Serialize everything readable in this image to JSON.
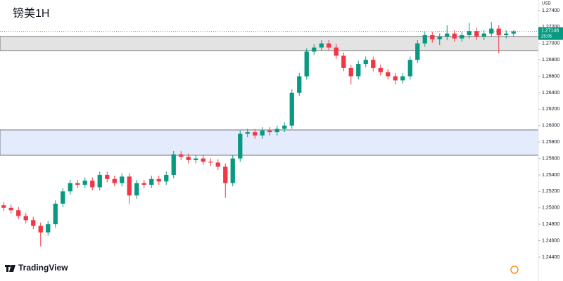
{
  "chart_data": {
    "type": "candlestick",
    "title": "镑美1H",
    "currency": "USD",
    "brand": "TradingView",
    "up_color": "#089981",
    "down_color": "#f23645",
    "ylim": [
      1.24109,
      1.27528
    ],
    "yticks": [
      {
        "value": 1.244,
        "label": "1.24400"
      },
      {
        "value": 1.246,
        "label": "1.24600"
      },
      {
        "value": 1.248,
        "label": "1.24800"
      },
      {
        "value": 1.25,
        "label": "1.25000"
      },
      {
        "value": 1.252,
        "label": "1.25200"
      },
      {
        "value": 1.254,
        "label": "1.25400"
      },
      {
        "value": 1.256,
        "label": "1.25600"
      },
      {
        "value": 1.258,
        "label": "1.25800"
      },
      {
        "value": 1.26,
        "label": "1.26000"
      },
      {
        "value": 1.262,
        "label": "1.26200"
      },
      {
        "value": 1.264,
        "label": "1.26400"
      },
      {
        "value": 1.266,
        "label": "1.26600"
      },
      {
        "value": 1.268,
        "label": "1.26800"
      },
      {
        "value": 1.27,
        "label": "1.27000"
      },
      {
        "value": 1.272,
        "label": "1.27200"
      },
      {
        "value": 1.274,
        "label": "1.27400"
      }
    ],
    "zones": [
      {
        "from": 1.26913,
        "to": 1.27084,
        "color": "#e3e3e3"
      },
      {
        "from": 1.25639,
        "to": 1.25947,
        "color": "#e3ebfd"
      }
    ],
    "last_price": {
      "value": 1.27146,
      "label": "1.27146",
      "countdown": "25:05"
    },
    "ohlc": [
      [
        1.2503,
        1.2507,
        1.2496,
        1.25
      ],
      [
        1.25,
        1.2504,
        1.2493,
        1.2497
      ],
      [
        1.2497,
        1.2501,
        1.2486,
        1.249
      ],
      [
        1.249,
        1.2494,
        1.2481,
        1.2485
      ],
      [
        1.2485,
        1.2489,
        1.2474,
        1.2478
      ],
      [
        1.2478,
        1.2482,
        1.2453,
        1.247
      ],
      [
        1.247,
        1.2484,
        1.2466,
        1.248
      ],
      [
        1.248,
        1.2509,
        1.2476,
        1.2505
      ],
      [
        1.2505,
        1.2524,
        1.2501,
        1.252
      ],
      [
        1.252,
        1.2534,
        1.2516,
        1.253
      ],
      [
        1.253,
        1.2534,
        1.2524,
        1.2528
      ],
      [
        1.2528,
        1.2537,
        1.2524,
        1.2533
      ],
      [
        1.2533,
        1.2537,
        1.2521,
        1.2525
      ],
      [
        1.2525,
        1.2544,
        1.2521,
        1.254
      ],
      [
        1.254,
        1.2544,
        1.2531,
        1.2535
      ],
      [
        1.2535,
        1.2539,
        1.2526,
        1.253
      ],
      [
        1.253,
        1.2542,
        1.2526,
        1.2538
      ],
      [
        1.2538,
        1.2542,
        1.2505,
        1.2515
      ],
      [
        1.2515,
        1.2534,
        1.2511,
        1.253
      ],
      [
        1.253,
        1.2534,
        1.2524,
        1.2528
      ],
      [
        1.2528,
        1.2539,
        1.2524,
        1.2535
      ],
      [
        1.2535,
        1.2539,
        1.2528,
        1.2532
      ],
      [
        1.2532,
        1.2544,
        1.2528,
        1.254
      ],
      [
        1.254,
        1.2569,
        1.2536,
        1.2565
      ],
      [
        1.2565,
        1.2569,
        1.2558,
        1.2562
      ],
      [
        1.2562,
        1.2566,
        1.2554,
        1.2558
      ],
      [
        1.2558,
        1.2564,
        1.2554,
        1.256
      ],
      [
        1.256,
        1.2564,
        1.2552,
        1.2556
      ],
      [
        1.2556,
        1.256,
        1.2551,
        1.2555
      ],
      [
        1.2555,
        1.2559,
        1.2546,
        1.255
      ],
      [
        1.255,
        1.2554,
        1.2512,
        1.253
      ],
      [
        1.253,
        1.2564,
        1.2526,
        1.256
      ],
      [
        1.256,
        1.2594,
        1.2556,
        1.259
      ],
      [
        1.259,
        1.2596,
        1.2586,
        1.2592
      ],
      [
        1.2592,
        1.2596,
        1.2584,
        1.2588
      ],
      [
        1.2588,
        1.2598,
        1.2584,
        1.2594
      ],
      [
        1.2594,
        1.2598,
        1.2588,
        1.2592
      ],
      [
        1.2592,
        1.26,
        1.2588,
        1.2596
      ],
      [
        1.2596,
        1.2604,
        1.2592,
        1.26
      ],
      [
        1.26,
        1.2644,
        1.2596,
        1.264
      ],
      [
        1.264,
        1.2664,
        1.2636,
        1.266
      ],
      [
        1.266,
        1.2694,
        1.2656,
        1.269
      ],
      [
        1.269,
        1.2699,
        1.2686,
        1.2695
      ],
      [
        1.2695,
        1.2704,
        1.2691,
        1.27
      ],
      [
        1.27,
        1.2704,
        1.2691,
        1.2695
      ],
      [
        1.2695,
        1.2699,
        1.2681,
        1.2685
      ],
      [
        1.2685,
        1.2689,
        1.2666,
        1.267
      ],
      [
        1.267,
        1.2674,
        1.265,
        1.266
      ],
      [
        1.266,
        1.2679,
        1.2656,
        1.2675
      ],
      [
        1.2675,
        1.2684,
        1.2671,
        1.268
      ],
      [
        1.268,
        1.2684,
        1.2666,
        1.267
      ],
      [
        1.267,
        1.2674,
        1.2661,
        1.2665
      ],
      [
        1.2665,
        1.2669,
        1.2656,
        1.266
      ],
      [
        1.266,
        1.2664,
        1.265,
        1.2655
      ],
      [
        1.2655,
        1.2664,
        1.2651,
        1.266
      ],
      [
        1.266,
        1.2684,
        1.2656,
        1.268
      ],
      [
        1.268,
        1.2704,
        1.2676,
        1.27
      ],
      [
        1.27,
        1.2714,
        1.2696,
        1.271
      ],
      [
        1.271,
        1.2714,
        1.2701,
        1.2705
      ],
      [
        1.2705,
        1.2712,
        1.2698,
        1.2708
      ],
      [
        1.2708,
        1.2722,
        1.2704,
        1.2712
      ],
      [
        1.2712,
        1.2716,
        1.2702,
        1.2706
      ],
      [
        1.2706,
        1.2714,
        1.2702,
        1.271
      ],
      [
        1.271,
        1.2725,
        1.2706,
        1.2715
      ],
      [
        1.2715,
        1.2719,
        1.2704,
        1.2708
      ],
      [
        1.2708,
        1.2716,
        1.2704,
        1.2712
      ],
      [
        1.2712,
        1.2726,
        1.2708,
        1.2718
      ],
      [
        1.2718,
        1.2722,
        1.2688,
        1.271
      ],
      [
        1.271,
        1.2716,
        1.2706,
        1.2712
      ],
      [
        1.2712,
        1.2716,
        1.2708,
        1.27146
      ]
    ]
  }
}
